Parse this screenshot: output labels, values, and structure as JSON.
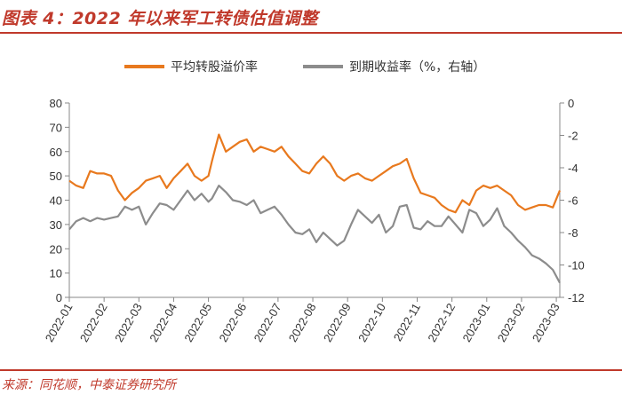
{
  "header": {
    "title": "图表 4：2022 年以来军工转债估值调整"
  },
  "footer": {
    "source": "来源：同花顺，中泰证券研究所"
  },
  "colors": {
    "accent": "#c0392b",
    "premium": "#e8791e",
    "yield": "#8c8c8c"
  },
  "chart_data": {
    "type": "line",
    "legend_placement": "top-center",
    "grid": false,
    "x_ticks": [
      "2022-01",
      "2022-02",
      "2022-03",
      "2022-04",
      "2022-05",
      "2022-06",
      "2022-07",
      "2022-08",
      "2022-09",
      "2022-10",
      "2022-11",
      "2022-12",
      "2023-01",
      "2023-02",
      "2023-03"
    ],
    "x_range": [
      0,
      14.1
    ],
    "y_left": {
      "min": 0,
      "max": 80,
      "ticks": [
        "0",
        "10",
        "20",
        "30",
        "40",
        "50",
        "60",
        "70",
        "80"
      ]
    },
    "y_right": {
      "min": -12,
      "max": 0,
      "ticks": [
        "0",
        "-2",
        "-4",
        "-6",
        "-8",
        "-10",
        "-12"
      ]
    },
    "series": [
      {
        "name": "平均转股溢价率",
        "axis": "left",
        "x": [
          0,
          0.2,
          0.4,
          0.6,
          0.8,
          1.0,
          1.2,
          1.4,
          1.6,
          1.8,
          2.0,
          2.2,
          2.4,
          2.6,
          2.8,
          3.0,
          3.2,
          3.4,
          3.6,
          3.8,
          4.0,
          4.1,
          4.3,
          4.5,
          4.7,
          4.9,
          5.1,
          5.3,
          5.5,
          5.7,
          5.9,
          6.1,
          6.3,
          6.5,
          6.7,
          6.9,
          7.1,
          7.3,
          7.5,
          7.7,
          7.9,
          8.1,
          8.3,
          8.5,
          8.7,
          8.9,
          9.1,
          9.3,
          9.5,
          9.7,
          9.9,
          10.1,
          10.3,
          10.5,
          10.7,
          10.9,
          11.1,
          11.3,
          11.5,
          11.7,
          11.9,
          12.1,
          12.3,
          12.5,
          12.7,
          12.9,
          13.1,
          13.3,
          13.5,
          13.7,
          13.9,
          14.1
        ],
        "y": [
          48,
          46,
          45,
          52,
          51,
          51,
          50,
          44,
          40,
          43,
          45,
          48,
          49,
          50,
          45,
          49,
          52,
          55,
          50,
          48,
          50,
          56,
          67,
          60,
          62,
          64,
          65,
          60,
          62,
          61,
          60,
          62,
          58,
          55,
          52,
          51,
          55,
          58,
          55,
          50,
          48,
          50,
          51,
          49,
          48,
          50,
          52,
          54,
          55,
          57,
          49,
          43,
          42,
          41,
          38,
          36,
          35,
          40,
          38,
          44,
          46,
          45,
          46,
          44,
          42,
          38,
          36,
          37,
          38,
          38,
          37,
          44
        ]
      },
      {
        "name": "到期收益率（%，右轴）",
        "axis": "right",
        "x": [
          0,
          0.2,
          0.4,
          0.6,
          0.8,
          1.0,
          1.2,
          1.4,
          1.6,
          1.8,
          2.0,
          2.2,
          2.4,
          2.6,
          2.8,
          3.0,
          3.2,
          3.4,
          3.6,
          3.8,
          4.0,
          4.1,
          4.3,
          4.5,
          4.7,
          4.9,
          5.1,
          5.3,
          5.5,
          5.7,
          5.9,
          6.1,
          6.3,
          6.5,
          6.7,
          6.9,
          7.1,
          7.3,
          7.5,
          7.7,
          7.9,
          8.1,
          8.3,
          8.5,
          8.7,
          8.9,
          9.1,
          9.3,
          9.5,
          9.7,
          9.9,
          10.1,
          10.3,
          10.5,
          10.7,
          10.9,
          11.1,
          11.3,
          11.5,
          11.7,
          11.9,
          12.1,
          12.3,
          12.5,
          12.7,
          12.9,
          13.1,
          13.3,
          13.5,
          13.7,
          13.9,
          14.1
        ],
        "y": [
          -7.8,
          -7.3,
          -7.1,
          -7.3,
          -7.1,
          -7.2,
          -7.1,
          -7.0,
          -6.4,
          -6.6,
          -6.4,
          -7.5,
          -6.8,
          -6.2,
          -6.3,
          -6.6,
          -6.0,
          -5.4,
          -6.0,
          -5.6,
          -6.1,
          -5.9,
          -5.1,
          -5.5,
          -6.0,
          -6.1,
          -6.3,
          -6.0,
          -6.8,
          -6.6,
          -6.4,
          -6.9,
          -7.5,
          -8.0,
          -8.1,
          -7.8,
          -8.6,
          -8.0,
          -8.4,
          -8.8,
          -8.5,
          -7.5,
          -6.6,
          -7.0,
          -7.4,
          -6.9,
          -8.0,
          -7.6,
          -6.4,
          -6.3,
          -7.7,
          -7.8,
          -7.3,
          -7.6,
          -7.6,
          -7.0,
          -7.5,
          -8.0,
          -6.6,
          -6.8,
          -7.6,
          -7.2,
          -6.5,
          -7.6,
          -8.0,
          -8.5,
          -8.9,
          -9.4,
          -9.6,
          -9.9,
          -10.3,
          -11.1
        ]
      }
    ]
  }
}
